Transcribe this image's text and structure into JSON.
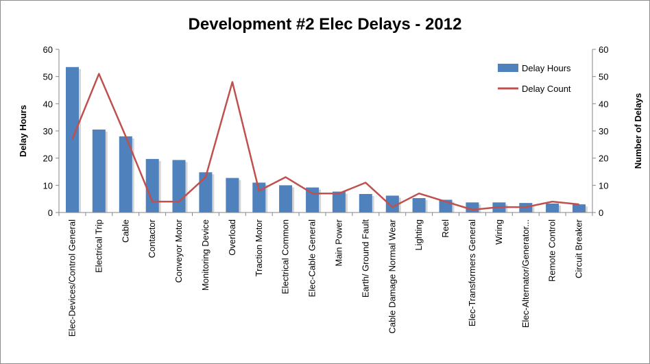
{
  "chart_data": {
    "type": "bar",
    "title": "Development #2 Elec Delays - 2012",
    "ylabel": "Delay Hours",
    "y2label": "Number of Delays",
    "ylim": [
      0,
      60
    ],
    "y2lim": [
      0,
      60
    ],
    "yticks": [
      0,
      10,
      20,
      30,
      40,
      50,
      60
    ],
    "y2ticks": [
      0,
      10,
      20,
      30,
      40,
      50,
      60
    ],
    "grid": false,
    "legend_position": "top-right",
    "categories": [
      "Elec-Devices/Control General",
      "Electrical Trip",
      "Cable",
      "Contactor",
      "Conveyor Motor",
      "Monitoring Device",
      "Overload",
      "Traction Motor",
      "Electrical Common",
      "Elec-Cable General",
      "Main Power",
      "Earth/ Ground Fault",
      "Cable Damage Normal Wear",
      "Lighting",
      "Reel",
      "Elec-Transformers General",
      "Wiring",
      "Elec-Alternator/Generator...",
      "Remote Control",
      "Circuit Breaker"
    ],
    "series": [
      {
        "name": "Delay Hours",
        "type": "bar",
        "axis": "left",
        "color": "#4f81bd",
        "values": [
          53.5,
          30.5,
          28,
          19.7,
          19.3,
          14.8,
          12.7,
          11,
          10,
          9.2,
          7.7,
          6.8,
          6.2,
          5.3,
          4.7,
          3.7,
          3.7,
          3.5,
          3.3,
          3
        ]
      },
      {
        "name": "Delay Count",
        "type": "line",
        "axis": "right",
        "color": "#c0504d",
        "values": [
          27,
          51,
          28,
          4,
          4,
          13,
          48,
          8,
          13,
          7,
          7,
          11,
          2,
          7,
          4,
          1,
          2,
          2,
          4,
          3
        ]
      }
    ]
  }
}
